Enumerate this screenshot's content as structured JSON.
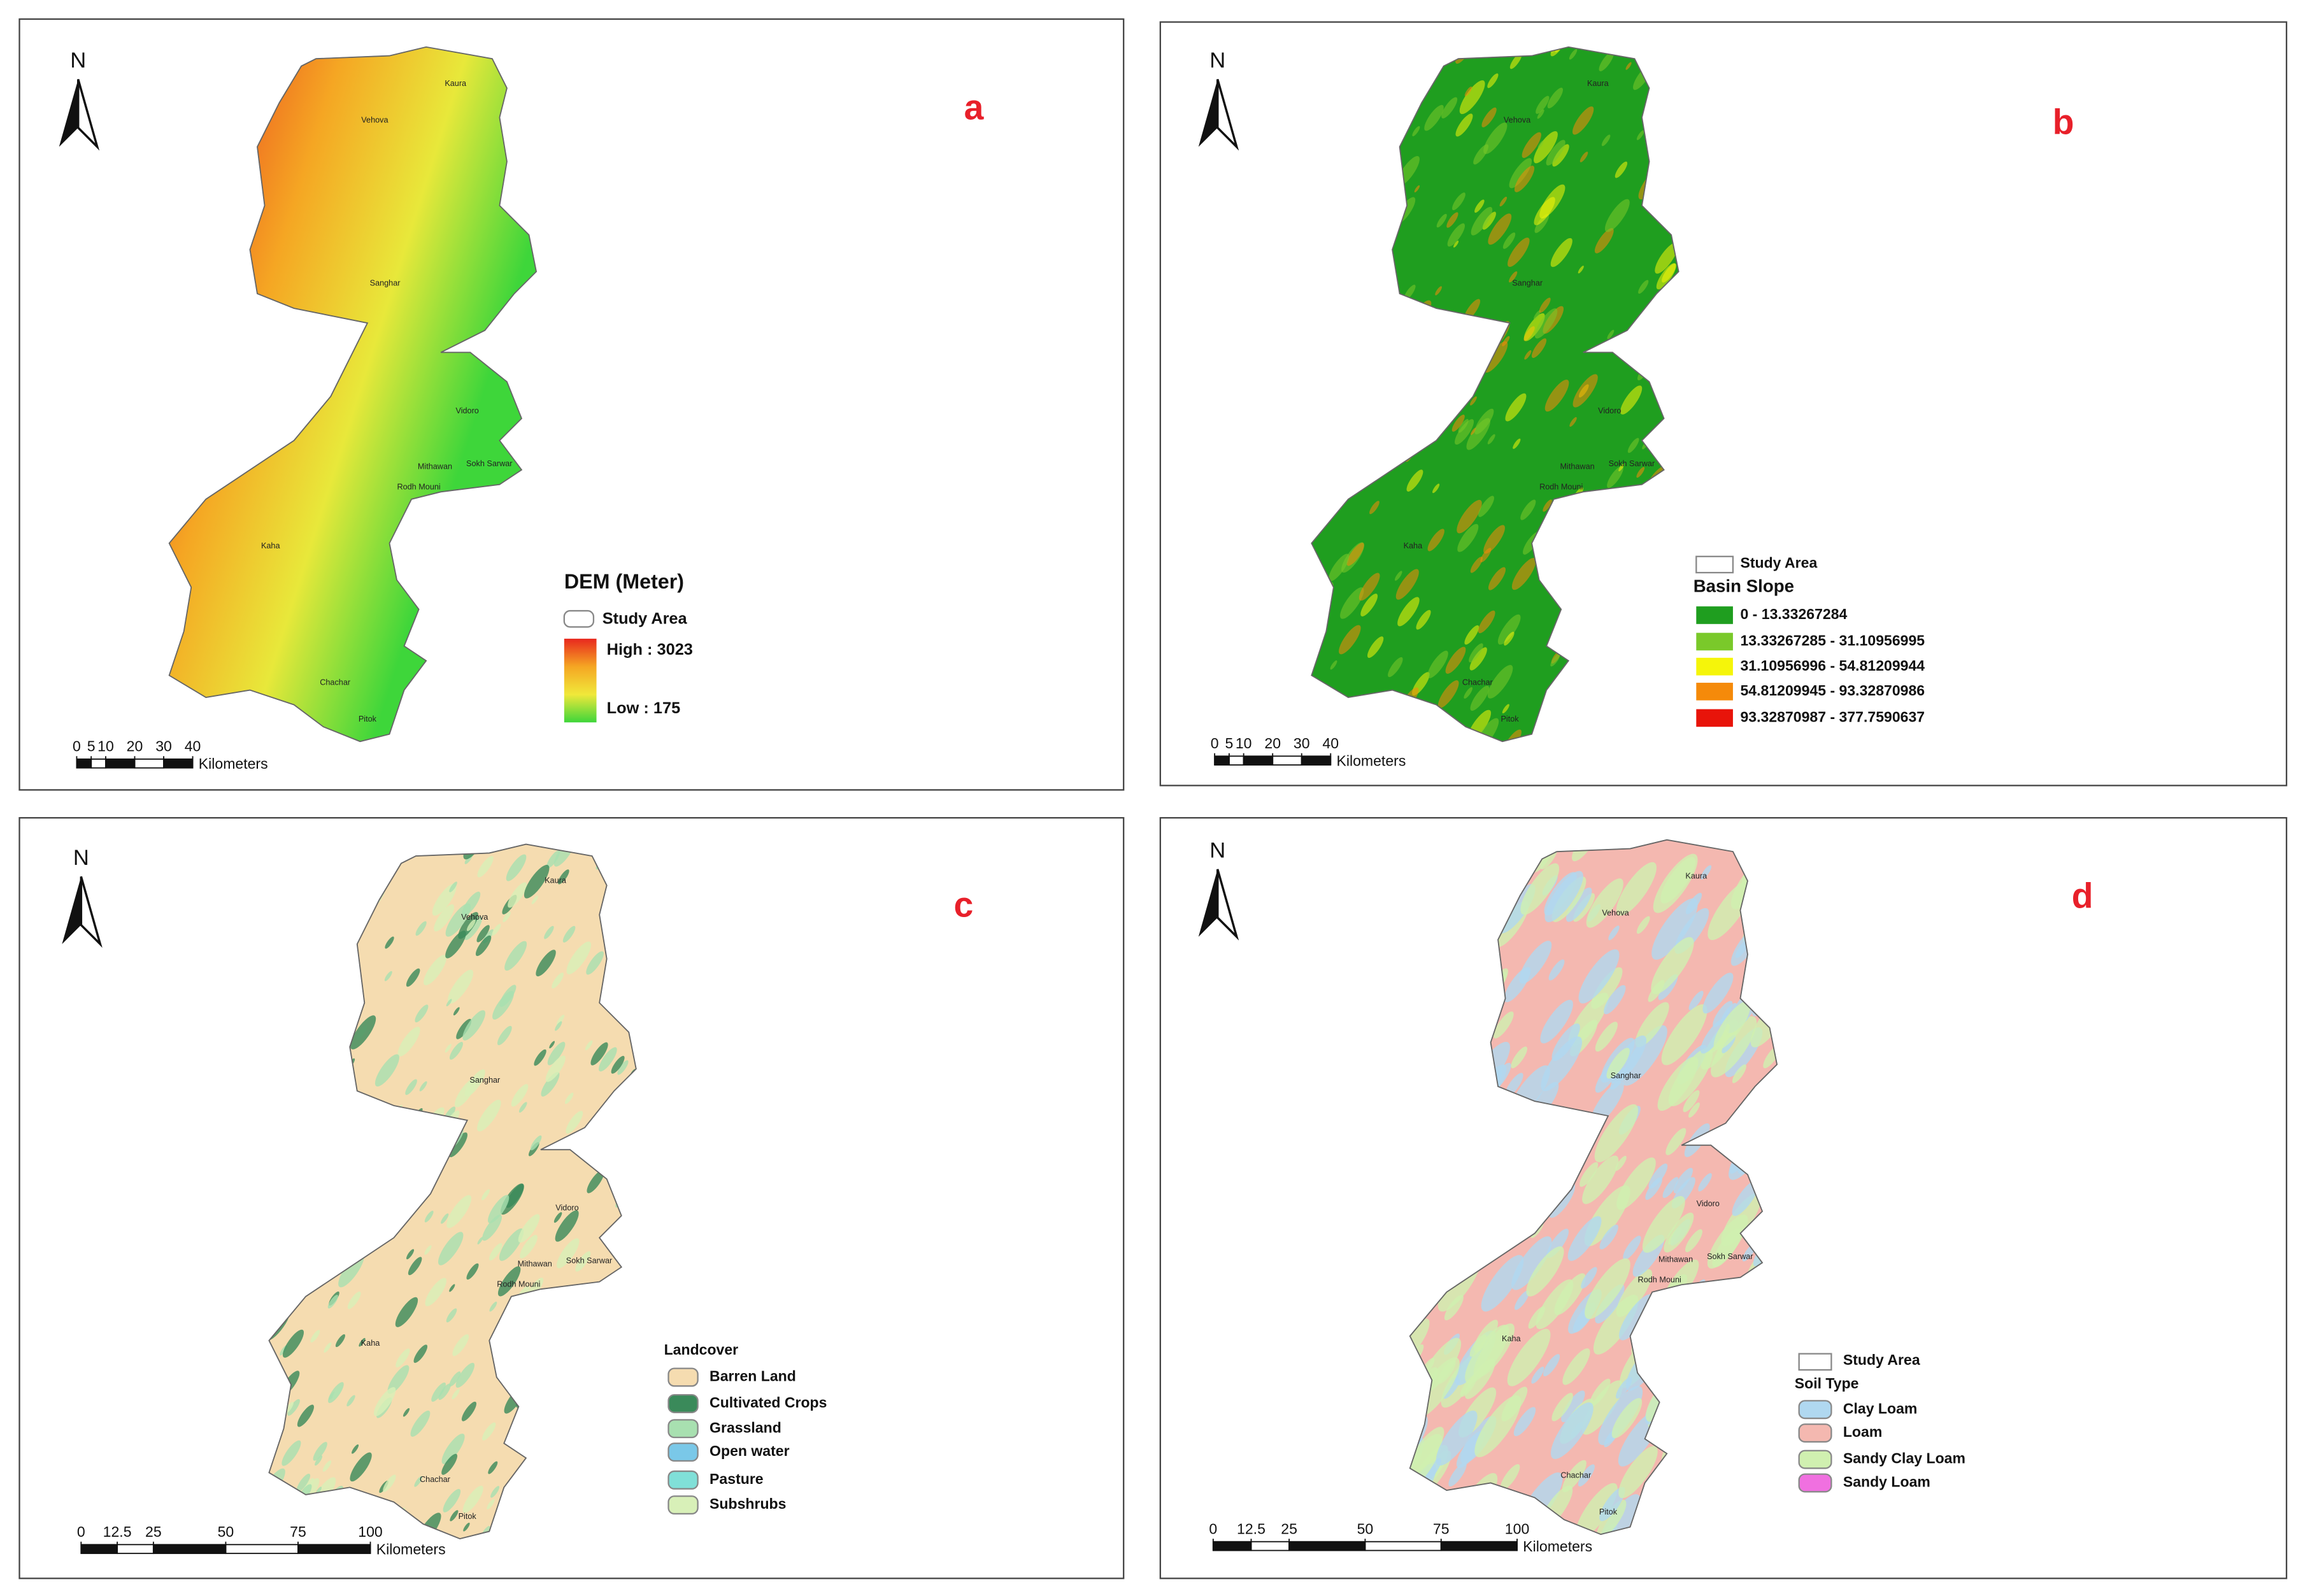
{
  "districts": [
    "Kaura",
    "Vehova",
    "Sanghar",
    "Vidoro",
    "Mithawan",
    "Sokh Sarwar",
    "Rodh Mouni",
    "Kaha",
    "Chachar",
    "Pitok"
  ],
  "panels": [
    {
      "label": "a",
      "north": "N",
      "legend": {
        "title": "DEM (Meter)",
        "study_area": "Study Area",
        "high": "High : 3023",
        "low": "Low : 175",
        "colors": [
          "#e8281e",
          "#f5a623",
          "#f0e83a",
          "#3ed63a"
        ]
      },
      "scale": {
        "ticks": [
          0,
          5,
          10,
          20,
          30,
          40
        ],
        "unit": "Kilometers"
      }
    },
    {
      "label": "b",
      "north": "N",
      "legend": {
        "study_area": "Study Area",
        "title": "Basin Slope",
        "items": [
          {
            "label": "0 - 13.33267284",
            "color": "#1f9e1f"
          },
          {
            "label": "13.33267285 - 31.10956995",
            "color": "#7ac92a"
          },
          {
            "label": "31.10956996 - 54.81209944",
            "color": "#f5f50a"
          },
          {
            "label": "54.81209945 - 93.32870986",
            "color": "#f58a0a"
          },
          {
            "label": "93.32870987 - 377.7590637",
            "color": "#e8140a"
          }
        ]
      },
      "scale": {
        "ticks": [
          0,
          5,
          10,
          20,
          30,
          40
        ],
        "unit": "Kilometers"
      }
    },
    {
      "label": "c",
      "north": "N",
      "legend": {
        "title": "Landcover",
        "items": [
          {
            "label": "Barren Land",
            "color": "#f5dcb0"
          },
          {
            "label": "Cultivated Crops",
            "color": "#3a8a5a"
          },
          {
            "label": "Grassland",
            "color": "#a8e0b0"
          },
          {
            "label": "Open water",
            "color": "#7ac8e8"
          },
          {
            "label": "Pasture",
            "color": "#80e0d8"
          },
          {
            "label": "Subshrubs",
            "color": "#d8f0b8"
          }
        ]
      },
      "scale": {
        "ticks": [
          0,
          12.5,
          25,
          50,
          75,
          100
        ],
        "unit": "Kilometers"
      }
    },
    {
      "label": "d",
      "north": "N",
      "legend": {
        "study_area": "Study Area",
        "title": "Soil Type",
        "items": [
          {
            "label": "Clay Loam",
            "color": "#b0d8f0"
          },
          {
            "label": "Loam",
            "color": "#f4b8b0"
          },
          {
            "label": "Sandy Clay Loam",
            "color": "#d0f0b0"
          },
          {
            "label": "Sandy Loam",
            "color": "#f070e0"
          }
        ]
      },
      "scale": {
        "ticks": [
          0,
          12.5,
          25,
          50,
          75,
          100
        ],
        "unit": "Kilometers"
      }
    }
  ]
}
